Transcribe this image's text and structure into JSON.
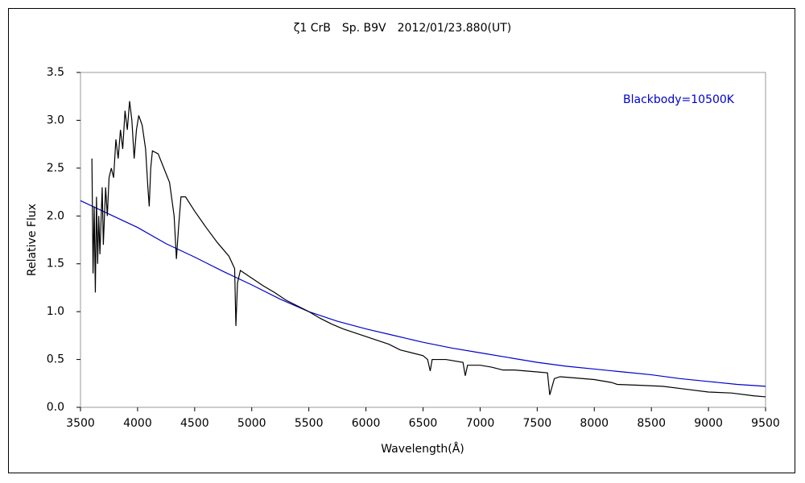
{
  "chart_data": {
    "type": "line",
    "title": "ζ1 CrB　Sp. B9V　2012/01/23.880(UT)",
    "x_label": "Wavelength(Å)",
    "y_label": "Relative Flux",
    "xlim": [
      3500,
      9500
    ],
    "ylim": [
      0,
      3.5
    ],
    "xticks": [
      3500,
      4000,
      4500,
      5000,
      5500,
      6000,
      6500,
      7000,
      7500,
      8000,
      8500,
      9000,
      9500
    ],
    "yticks": [
      {
        "value": 0,
        "label": "0.0"
      },
      0.5,
      {
        "value": 1,
        "label": "1.0"
      },
      1.5,
      {
        "value": 2,
        "label": "2.0"
      },
      2.5,
      {
        "value": 3,
        "label": "3.0"
      },
      3.5
    ],
    "series": [
      {
        "name": "Blackbody=10500K",
        "color": "#0000cc",
        "x": [
          3500,
          3750,
          4000,
          4250,
          4500,
          4750,
          5000,
          5250,
          5500,
          5750,
          6000,
          6250,
          6500,
          6750,
          7000,
          7250,
          7500,
          7750,
          8000,
          8250,
          8500,
          8750,
          9000,
          9250,
          9500
        ],
        "values": [
          2.16,
          2.02,
          1.88,
          1.71,
          1.57,
          1.42,
          1.28,
          1.13,
          1.0,
          0.9,
          0.82,
          0.75,
          0.68,
          0.62,
          0.57,
          0.52,
          0.47,
          0.43,
          0.4,
          0.37,
          0.34,
          0.3,
          0.27,
          0.24,
          0.22
        ]
      },
      {
        "name": "ζ1 CrB",
        "color": "#000000",
        "x": [
          3600,
          3610,
          3620,
          3630,
          3640,
          3650,
          3660,
          3670,
          3690,
          3700,
          3720,
          3735,
          3750,
          3770,
          3790,
          3810,
          3830,
          3850,
          3870,
          3890,
          3910,
          3930,
          3950,
          3970,
          3990,
          4010,
          4040,
          4070,
          4090,
          4102,
          4115,
          4130,
          4180,
          4230,
          4280,
          4320,
          4340,
          4360,
          4380,
          4420,
          4500,
          4600,
          4700,
          4800,
          4850,
          4861,
          4875,
          4900,
          5000,
          5100,
          5200,
          5300,
          5400,
          5500,
          5600,
          5700,
          5800,
          5900,
          6000,
          6100,
          6200,
          6300,
          6400,
          6500,
          6540,
          6563,
          6580,
          6700,
          6850,
          6870,
          6890,
          7000,
          7100,
          7200,
          7300,
          7500,
          7590,
          7610,
          7650,
          7700,
          7800,
          8000,
          8150,
          8200,
          8400,
          8600,
          8800,
          9000,
          9200,
          9400,
          9500
        ],
        "values": [
          2.6,
          1.4,
          2.1,
          1.2,
          2.2,
          1.5,
          2.0,
          1.6,
          2.3,
          1.7,
          2.3,
          2.0,
          2.4,
          2.5,
          2.4,
          2.8,
          2.6,
          2.9,
          2.7,
          3.1,
          2.9,
          3.2,
          3.0,
          2.6,
          2.9,
          3.05,
          2.95,
          2.7,
          2.3,
          2.1,
          2.5,
          2.68,
          2.65,
          2.5,
          2.35,
          2.0,
          1.55,
          1.9,
          2.2,
          2.2,
          2.05,
          1.88,
          1.72,
          1.58,
          1.45,
          0.85,
          1.3,
          1.43,
          1.35,
          1.27,
          1.2,
          1.12,
          1.06,
          1.0,
          0.93,
          0.87,
          0.82,
          0.78,
          0.74,
          0.7,
          0.66,
          0.6,
          0.57,
          0.54,
          0.5,
          0.38,
          0.5,
          0.5,
          0.47,
          0.33,
          0.44,
          0.44,
          0.42,
          0.39,
          0.39,
          0.37,
          0.36,
          0.13,
          0.3,
          0.32,
          0.31,
          0.29,
          0.26,
          0.24,
          0.23,
          0.22,
          0.19,
          0.16,
          0.15,
          0.12,
          0.11
        ]
      }
    ]
  }
}
